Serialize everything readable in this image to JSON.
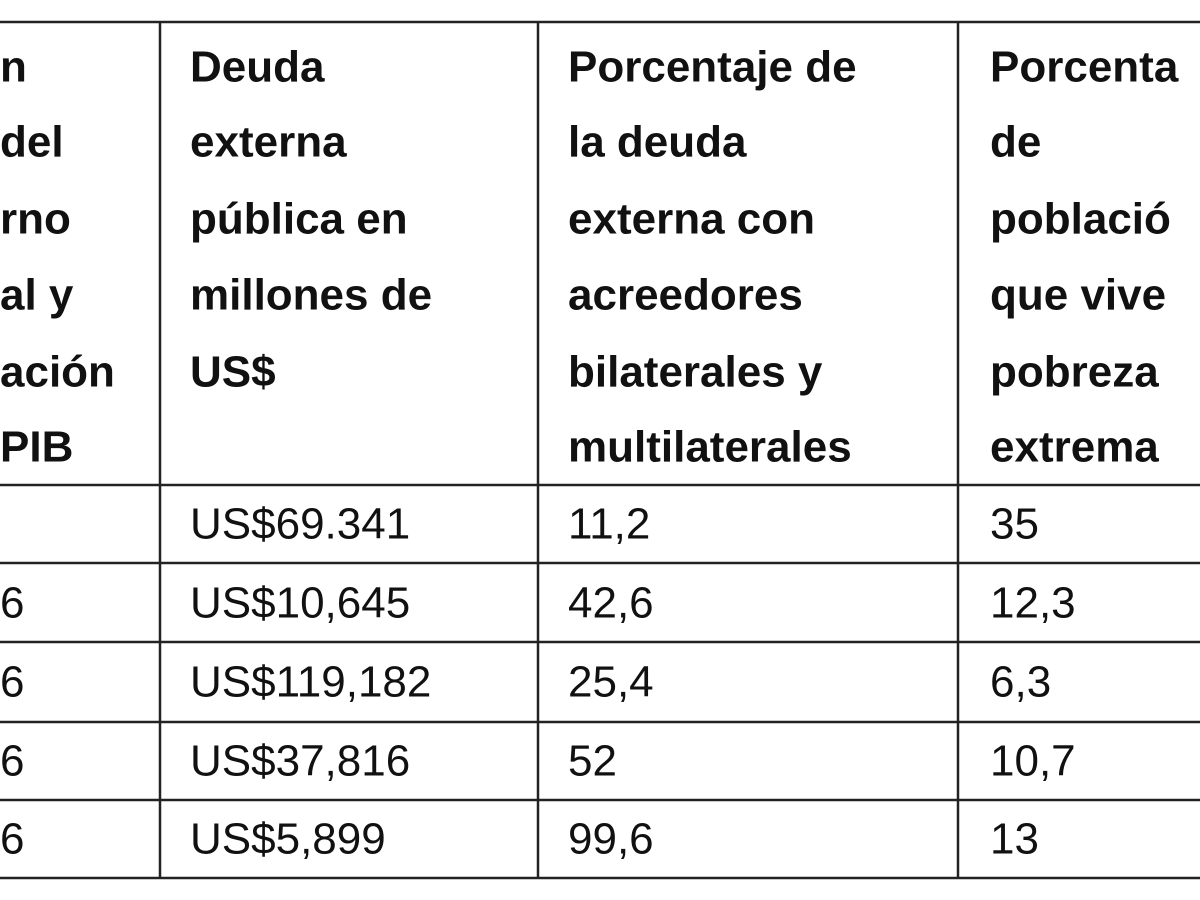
{
  "table": {
    "header": [
      [
        "n",
        "del",
        "rno",
        "al y",
        "ación",
        "PIB"
      ],
      [
        "Deuda",
        "externa",
        "pública en",
        "millones de",
        "US$"
      ],
      [
        "Porcentaje de",
        "la deuda",
        "externa con",
        "acreedores",
        "bilaterales y",
        "multilaterales"
      ],
      [
        "Porcenta",
        "de",
        "població",
        "que vive",
        "pobreza",
        "extrema"
      ]
    ],
    "rows": [
      [
        "",
        "US$69.341",
        "11,2",
        "35"
      ],
      [
        "6",
        "US$10,645",
        "42,6",
        "12,3"
      ],
      [
        "6",
        "US$119,182",
        "25,4",
        "6,3"
      ],
      [
        "6",
        "US$37,816",
        "52",
        "10,7"
      ],
      [
        "6",
        "US$5,899",
        "99,6",
        "13"
      ]
    ]
  }
}
